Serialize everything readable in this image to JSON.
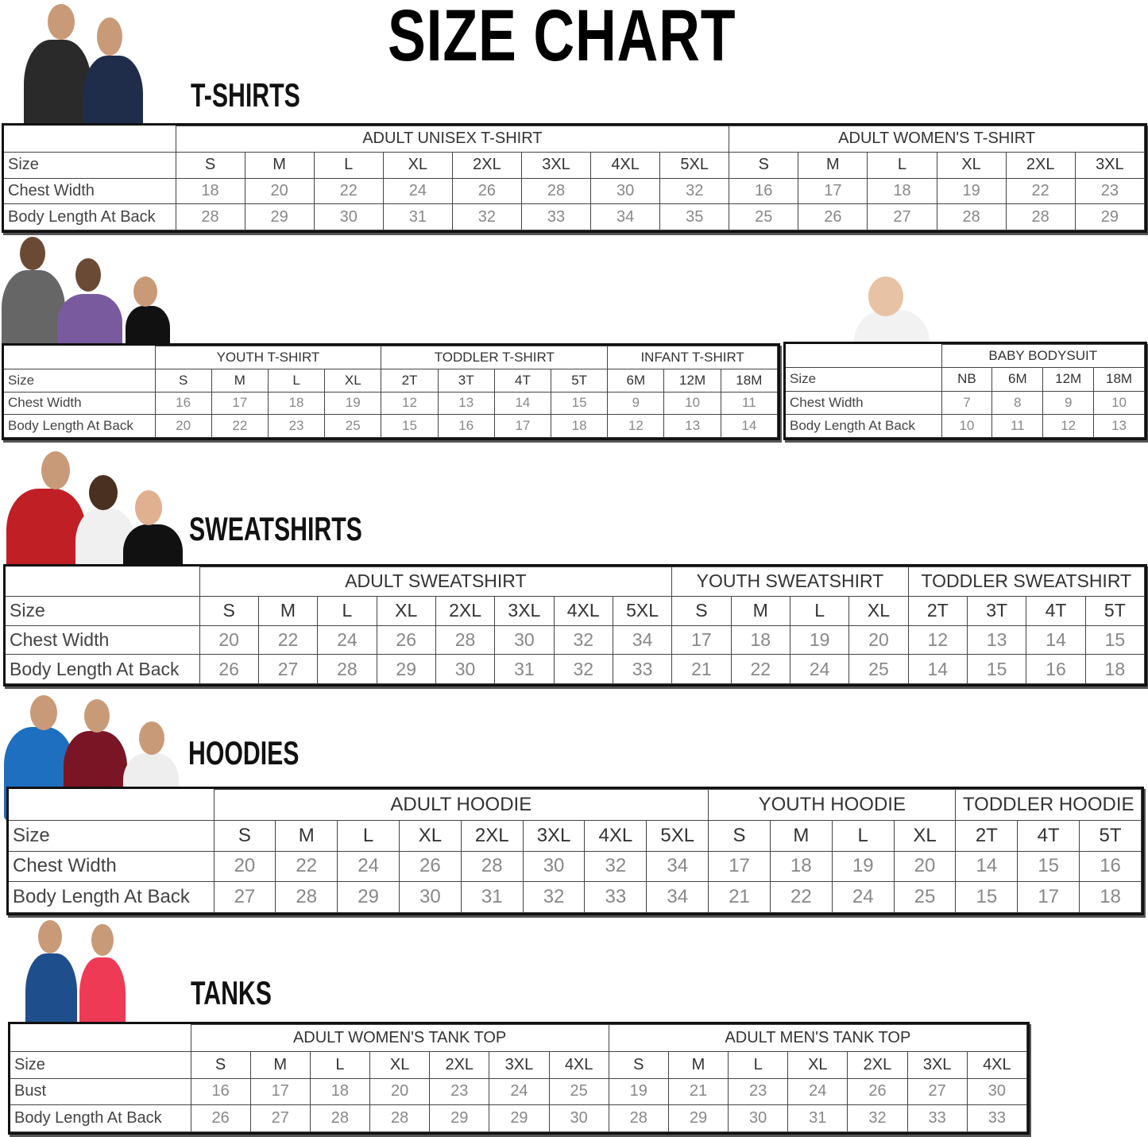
{
  "title": "SIZE CHART",
  "sections": {
    "tshirts": "T-SHIRTS",
    "sweatshirts": "SWEATSHIRTS",
    "hoodies": "HOODIES",
    "tanks": "TANKS"
  },
  "colors": {
    "border": "#111111",
    "value_text": "#888888",
    "label_text": "#444444"
  },
  "tables": [
    {
      "id": "adult-tshirt",
      "row_labels": [
        "Size",
        "Chest Width",
        "Body Length At Back"
      ],
      "groups": [
        {
          "name": "ADULT UNISEX T-SHIRT",
          "sizes": [
            "S",
            "M",
            "L",
            "XL",
            "2XL",
            "3XL",
            "4XL",
            "5XL"
          ],
          "rows": [
            [
              "18",
              "20",
              "22",
              "24",
              "26",
              "28",
              "30",
              "32"
            ],
            [
              "28",
              "29",
              "30",
              "31",
              "32",
              "33",
              "34",
              "35"
            ]
          ]
        },
        {
          "name": "ADULT WOMEN'S T-SHIRT",
          "sizes": [
            "S",
            "M",
            "L",
            "XL",
            "2XL",
            "3XL"
          ],
          "rows": [
            [
              "16",
              "17",
              "18",
              "19",
              "22",
              "23"
            ],
            [
              "25",
              "26",
              "27",
              "28",
              "28",
              "29"
            ]
          ]
        }
      ]
    },
    {
      "id": "kids-tshirt",
      "row_labels": [
        "Size",
        "Chest Width",
        "Body Length At Back"
      ],
      "groups": [
        {
          "name": "YOUTH T-SHIRT",
          "sizes": [
            "S",
            "M",
            "L",
            "XL"
          ],
          "rows": [
            [
              "16",
              "17",
              "18",
              "19"
            ],
            [
              "20",
              "22",
              "23",
              "25"
            ]
          ]
        },
        {
          "name": "TODDLER T-SHIRT",
          "sizes": [
            "2T",
            "3T",
            "4T",
            "5T"
          ],
          "rows": [
            [
              "12",
              "13",
              "14",
              "15"
            ],
            [
              "15",
              "16",
              "17",
              "18"
            ]
          ]
        },
        {
          "name": "INFANT T-SHIRT",
          "sizes": [
            "6M",
            "12M",
            "18M"
          ],
          "rows": [
            [
              "9",
              "10",
              "11"
            ],
            [
              "12",
              "13",
              "14"
            ]
          ]
        }
      ]
    },
    {
      "id": "baby-bodysuit",
      "row_labels": [
        "Size",
        "Chest Width",
        "Body Length At Back"
      ],
      "groups": [
        {
          "name": "BABY BODYSUIT",
          "sizes": [
            "NB",
            "6M",
            "12M",
            "18M"
          ],
          "rows": [
            [
              "7",
              "8",
              "9",
              "10"
            ],
            [
              "10",
              "11",
              "12",
              "13"
            ]
          ]
        }
      ]
    },
    {
      "id": "sweatshirt",
      "row_labels": [
        "Size",
        "Chest Width",
        "Body Length At Back"
      ],
      "groups": [
        {
          "name": "ADULT SWEATSHIRT",
          "sizes": [
            "S",
            "M",
            "L",
            "XL",
            "2XL",
            "3XL",
            "4XL",
            "5XL"
          ],
          "rows": [
            [
              "20",
              "22",
              "24",
              "26",
              "28",
              "30",
              "32",
              "34"
            ],
            [
              "26",
              "27",
              "28",
              "29",
              "30",
              "31",
              "32",
              "33"
            ]
          ]
        },
        {
          "name": "YOUTH SWEATSHIRT",
          "sizes": [
            "S",
            "M",
            "L",
            "XL"
          ],
          "rows": [
            [
              "17",
              "18",
              "19",
              "20"
            ],
            [
              "21",
              "22",
              "24",
              "25"
            ]
          ]
        },
        {
          "name": "TODDLER SWEATSHIRT",
          "sizes": [
            "2T",
            "3T",
            "4T",
            "5T"
          ],
          "rows": [
            [
              "12",
              "13",
              "14",
              "15"
            ],
            [
              "14",
              "15",
              "16",
              "18"
            ]
          ]
        }
      ]
    },
    {
      "id": "hoodie",
      "row_labels": [
        "Size",
        "Chest Width",
        "Body Length At Back"
      ],
      "groups": [
        {
          "name": "ADULT HOODIE",
          "sizes": [
            "S",
            "M",
            "L",
            "XL",
            "2XL",
            "3XL",
            "4XL",
            "5XL"
          ],
          "rows": [
            [
              "20",
              "22",
              "24",
              "26",
              "28",
              "30",
              "32",
              "34"
            ],
            [
              "27",
              "28",
              "29",
              "30",
              "31",
              "32",
              "33",
              "34"
            ]
          ]
        },
        {
          "name": "YOUTH HOODIE",
          "sizes": [
            "S",
            "M",
            "L",
            "XL"
          ],
          "rows": [
            [
              "17",
              "18",
              "19",
              "20"
            ],
            [
              "21",
              "22",
              "24",
              "25"
            ]
          ]
        },
        {
          "name": "TODDLER HOODIE",
          "sizes": [
            "2T",
            "4T",
            "5T"
          ],
          "rows": [
            [
              "14",
              "15",
              "16"
            ],
            [
              "15",
              "17",
              "18"
            ]
          ]
        }
      ]
    },
    {
      "id": "tank",
      "row_labels": [
        "Size",
        "Bust",
        "Body Length At Back"
      ],
      "groups": [
        {
          "name": "ADULT WOMEN'S TANK TOP",
          "sizes": [
            "S",
            "M",
            "L",
            "XL",
            "2XL",
            "3XL",
            "4XL"
          ],
          "rows": [
            [
              "16",
              "17",
              "18",
              "20",
              "23",
              "24",
              "25"
            ],
            [
              "26",
              "27",
              "28",
              "28",
              "29",
              "29",
              "30"
            ]
          ]
        },
        {
          "name": "ADULT MEN'S TANK TOP",
          "sizes": [
            "S",
            "M",
            "L",
            "XL",
            "2XL",
            "3XL",
            "4XL"
          ],
          "rows": [
            [
              "19",
              "21",
              "23",
              "24",
              "26",
              "27",
              "30"
            ],
            [
              "28",
              "29",
              "30",
              "31",
              "32",
              "33",
              "33"
            ]
          ]
        }
      ]
    }
  ]
}
